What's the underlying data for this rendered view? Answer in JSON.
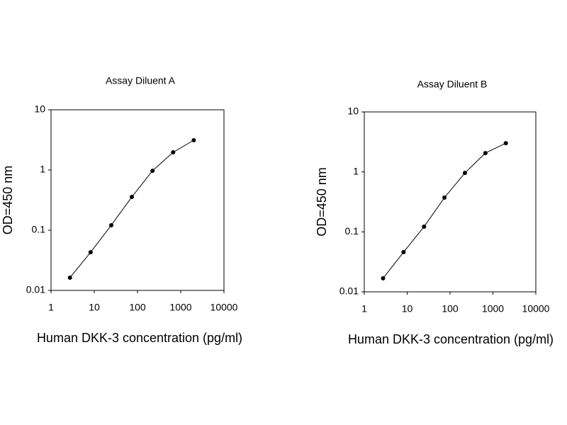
{
  "chart_data": [
    {
      "type": "line",
      "title": "Assay Diluent A",
      "xlabel": "Human DKK-3 concentration (pg/ml)",
      "ylabel": "OD=450 nm",
      "x": [
        2.74,
        8.23,
        24.7,
        74,
        222,
        667,
        2000
      ],
      "series": [
        {
          "color": "#000000",
          "values": [
            0.0163,
            0.043,
            0.121,
            0.357,
            0.97,
            1.97,
            3.12
          ]
        }
      ],
      "xscale": "log",
      "yscale": "log",
      "xlim": [
        1,
        10000
      ],
      "ylim": [
        0.01,
        10
      ],
      "xticks": [
        1,
        10,
        100,
        1000,
        10000
      ],
      "yticks": [
        0.01,
        0.1,
        1,
        10
      ]
    },
    {
      "type": "line",
      "title": "Assay Diluent B",
      "xlabel": "Human DKK-3 concentration (pg/ml)",
      "ylabel": "OD=450 nm",
      "x": [
        2.74,
        8.23,
        24.7,
        74,
        222,
        667,
        2000
      ],
      "series": [
        {
          "color": "#000000",
          "values": [
            0.0168,
            0.046,
            0.122,
            0.372,
            0.96,
            2.06,
            3.01
          ]
        }
      ],
      "xscale": "log",
      "yscale": "log",
      "xlim": [
        1,
        10000
      ],
      "ylim": [
        0.01,
        10
      ],
      "xticks": [
        1,
        10,
        100,
        1000,
        10000
      ],
      "yticks": [
        0.01,
        0.1,
        1,
        10
      ]
    }
  ]
}
